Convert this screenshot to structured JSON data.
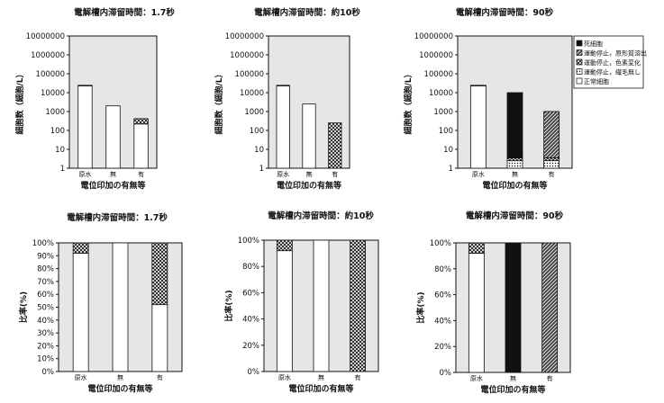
{
  "chart_data": [
    {
      "type": "bar",
      "title": "電解槽内滞留時間：1.7秒",
      "xlabel": "電位印加の有無等",
      "ylabel": "細胞数（細胞/L）",
      "yscale": "log",
      "ylim": [
        1,
        10000000
      ],
      "yticks": [
        "1",
        "10",
        "100",
        "1000",
        "10000",
        "100000",
        "1000000",
        "10000000"
      ],
      "categories": [
        "原水",
        "無",
        "有"
      ],
      "series": [
        {
          "name": "正常細胞",
          "values": [
            23000,
            2000,
            220
          ]
        },
        {
          "name": "運動停止，繊毛無し",
          "values": [
            0,
            0,
            0
          ]
        },
        {
          "name": "運動停止，色素変化",
          "values": [
            1500,
            0,
            200
          ]
        },
        {
          "name": "運動停止，原形質溶出",
          "values": [
            0,
            0,
            0
          ]
        },
        {
          "name": "死細胞",
          "values": [
            0,
            0,
            0
          ]
        }
      ]
    },
    {
      "type": "bar",
      "title": "電解槽内滞留時間：約10秒",
      "xlabel": "電位印加の有無等",
      "ylabel": "細胞数（細胞/L）",
      "yscale": "log",
      "ylim": [
        1,
        10000000
      ],
      "yticks": [
        "1",
        "10",
        "100",
        "1000",
        "10000",
        "100000",
        "1000000",
        "10000000"
      ],
      "categories": [
        "原水",
        "無",
        "有"
      ],
      "series": [
        {
          "name": "正常細胞",
          "values": [
            23000,
            2500,
            0
          ]
        },
        {
          "name": "運動停止，繊毛無し",
          "values": [
            0,
            0,
            0
          ]
        },
        {
          "name": "運動停止，色素変化",
          "values": [
            1500,
            0,
            250
          ]
        },
        {
          "name": "運動停止，原形質溶出",
          "values": [
            0,
            0,
            0
          ]
        },
        {
          "name": "死細胞",
          "values": [
            0,
            0,
            0
          ]
        }
      ]
    },
    {
      "type": "bar",
      "title": "電解槽内滞留時間：90秒",
      "xlabel": "電位印加の有無等",
      "ylabel": "細胞数（細胞/L）",
      "yscale": "log",
      "ylim": [
        1,
        10000000
      ],
      "yticks": [
        "1",
        "10",
        "100",
        "1000",
        "10000",
        "100000",
        "1000000",
        "10000000"
      ],
      "categories": [
        "原水",
        "無",
        "有"
      ],
      "legend_position": "right",
      "series": [
        {
          "name": "正常細胞",
          "values": [
            23000,
            1,
            1
          ]
        },
        {
          "name": "運動停止，繊毛無し",
          "values": [
            0,
            1.5,
            1.5
          ]
        },
        {
          "name": "運動停止，色素変化",
          "values": [
            1500,
            1,
            1
          ]
        },
        {
          "name": "運動停止，原形質溶出",
          "values": [
            0,
            0,
            1000
          ]
        },
        {
          "name": "死細胞",
          "values": [
            0,
            10000,
            0
          ]
        }
      ]
    },
    {
      "type": "bar",
      "stacked": "percent",
      "title": "電解槽内滞留時間：1.7秒",
      "xlabel": "電位印加の有無等",
      "ylabel": "比率(%)",
      "ylim": [
        0,
        100
      ],
      "yticks": [
        "0%",
        "10%",
        "20%",
        "30%",
        "40%",
        "50%",
        "60%",
        "70%",
        "80%",
        "90%",
        "100%"
      ],
      "categories": [
        "原水",
        "無",
        "有"
      ],
      "series": [
        {
          "name": "正常細胞",
          "values": [
            92,
            100,
            52
          ]
        },
        {
          "name": "運動停止，色素変化",
          "values": [
            8,
            0,
            48
          ]
        }
      ]
    },
    {
      "type": "bar",
      "stacked": "percent",
      "title": "電解槽内滞留時間：約10秒",
      "xlabel": "電位印加の有無等",
      "ylabel": "比率(%)",
      "ylim": [
        0,
        100
      ],
      "yticks": [
        "0%",
        "20%",
        "40%",
        "60%",
        "80%",
        "100%"
      ],
      "categories": [
        "原水",
        "無",
        "有"
      ],
      "series": [
        {
          "name": "正常細胞",
          "values": [
            92,
            100,
            0
          ]
        },
        {
          "name": "運動停止，色素変化",
          "values": [
            8,
            0,
            100
          ]
        }
      ]
    },
    {
      "type": "bar",
      "stacked": "percent",
      "title": "電解槽内滞留時間：90秒",
      "xlabel": "電位印加の有無等",
      "ylabel": "比率(%)",
      "ylim": [
        0,
        100
      ],
      "yticks": [
        "0%",
        "20%",
        "40%",
        "60%",
        "80%",
        "100%"
      ],
      "categories": [
        "原水",
        "無",
        "有"
      ],
      "series": [
        {
          "name": "正常細胞",
          "values": [
            92,
            0,
            0
          ]
        },
        {
          "name": "運動停止，色素変化",
          "values": [
            8,
            0,
            0
          ]
        },
        {
          "name": "運動停止，原形質溶出",
          "values": [
            0,
            0,
            100
          ]
        },
        {
          "name": "死細胞",
          "values": [
            0,
            100,
            0
          ]
        }
      ]
    }
  ],
  "legend": {
    "items": [
      {
        "label": "死細胞",
        "pattern": "solid"
      },
      {
        "label": "運動停止，原形質溶出",
        "pattern": "diag"
      },
      {
        "label": "運動停止，色素変化",
        "pattern": "cross"
      },
      {
        "label": "運動停止，繊毛無し",
        "pattern": "dots"
      },
      {
        "label": "正常細胞",
        "pattern": "white"
      }
    ]
  },
  "colors": {
    "plot_bg": "#e6e6e6",
    "bar_fill": "#ffffff",
    "solid": "#111111",
    "ink": "#111111"
  }
}
